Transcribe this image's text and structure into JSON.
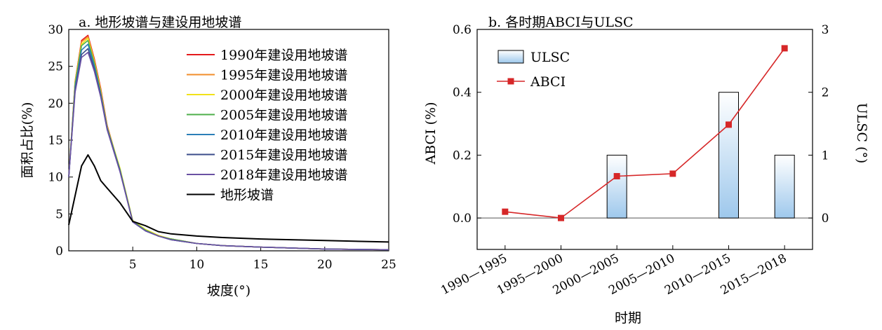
{
  "chart_data": [
    {
      "type": "line",
      "title": "a. 地形坡谱与建设用地坡谱",
      "xlabel": "坡度(°)",
      "ylabel": "面积占比(%)",
      "xlim": [
        0,
        25
      ],
      "ylim": [
        0,
        30
      ],
      "xticks": [
        5,
        10,
        15,
        20,
        25
      ],
      "yticks": [
        0,
        5,
        10,
        15,
        20,
        25,
        30
      ],
      "grid": false,
      "legend_position": "top-right",
      "x": [
        0,
        0.5,
        1,
        1.5,
        2,
        2.5,
        3,
        4,
        5,
        6,
        7,
        8,
        10,
        12,
        15,
        20,
        25
      ],
      "series": [
        {
          "name": "1990年建设用地坡谱",
          "color": "#e41a1c",
          "values": [
            10,
            23,
            28.5,
            29.2,
            26,
            22,
            17,
            11,
            4,
            2.8,
            2,
            1.6,
            1.0,
            0.7,
            0.5,
            0.25,
            0.15
          ]
        },
        {
          "name": "1995年建设用地坡谱",
          "color": "#f28e2b",
          "values": [
            10,
            23,
            28.3,
            29.0,
            25.8,
            21.8,
            16.9,
            10.9,
            4,
            2.8,
            2,
            1.6,
            1.0,
            0.7,
            0.5,
            0.25,
            0.15
          ]
        },
        {
          "name": "2000年建设用地坡谱",
          "color": "#f2e21a",
          "values": [
            10,
            22.8,
            28.0,
            28.8,
            25.6,
            21.6,
            16.8,
            11.2,
            4.1,
            2.9,
            2.1,
            1.6,
            1.0,
            0.7,
            0.5,
            0.25,
            0.15
          ]
        },
        {
          "name": "2005年建设用地坡谱",
          "color": "#4daf4a",
          "values": [
            10,
            22.6,
            27.8,
            28.5,
            25.4,
            21.4,
            16.7,
            11.0,
            4.0,
            2.8,
            2.0,
            1.6,
            1.0,
            0.7,
            0.5,
            0.25,
            0.15
          ]
        },
        {
          "name": "2010年建设用地坡谱",
          "color": "#2c7fb8",
          "values": [
            10,
            22.2,
            27.2,
            28.0,
            25.0,
            21.2,
            16.6,
            10.9,
            3.9,
            2.7,
            2.0,
            1.5,
            1.0,
            0.7,
            0.5,
            0.25,
            0.15
          ]
        },
        {
          "name": "2015年建设用地坡谱",
          "color": "#3b4c8a",
          "values": [
            10,
            21.8,
            26.6,
            27.4,
            24.6,
            21.0,
            16.5,
            10.8,
            3.9,
            2.7,
            2.0,
            1.5,
            1.0,
            0.7,
            0.5,
            0.25,
            0.15
          ]
        },
        {
          "name": "2018年建设用地坡谱",
          "color": "#6a51a3",
          "values": [
            10,
            21.5,
            26.2,
            26.9,
            24.3,
            20.8,
            16.4,
            10.7,
            3.9,
            2.7,
            2.0,
            1.5,
            1.0,
            0.7,
            0.5,
            0.25,
            0.15
          ]
        },
        {
          "name": "地形坡谱",
          "color": "#000000",
          "values": [
            3.5,
            7.5,
            11.5,
            13.0,
            11.5,
            9.5,
            8.5,
            6.5,
            4.0,
            3.4,
            2.6,
            2.3,
            2.0,
            1.8,
            1.6,
            1.4,
            1.2
          ]
        }
      ]
    },
    {
      "type": "bar",
      "title": "b. 各时期ABCI与ULSC",
      "xlabel": "时期",
      "ylabel": "ABCI (%)",
      "ylabel_right": "ULSC (°)",
      "categories": [
        "1990—1995",
        "1995—2000",
        "2000—2005",
        "2005—2010",
        "2010—2015",
        "2015—2018"
      ],
      "ylim": [
        -0.1,
        0.6
      ],
      "yticks": [
        "0.0",
        "0.2",
        "0.4",
        "0.6"
      ],
      "ylim_right": [
        -0.5,
        3
      ],
      "yticks_right": [
        "0",
        "1",
        "2",
        "3"
      ],
      "grid": false,
      "legend_position": "top-left",
      "series": [
        {
          "name": "ULSC",
          "kind": "bar",
          "axis": "right",
          "values": [
            0,
            0,
            1,
            0,
            2,
            1
          ]
        },
        {
          "name": "ABCI",
          "kind": "line",
          "axis": "left",
          "color": "#d62728",
          "values": [
            0.02,
            0.0,
            0.133,
            0.141,
            0.297,
            0.54
          ]
        }
      ]
    }
  ]
}
